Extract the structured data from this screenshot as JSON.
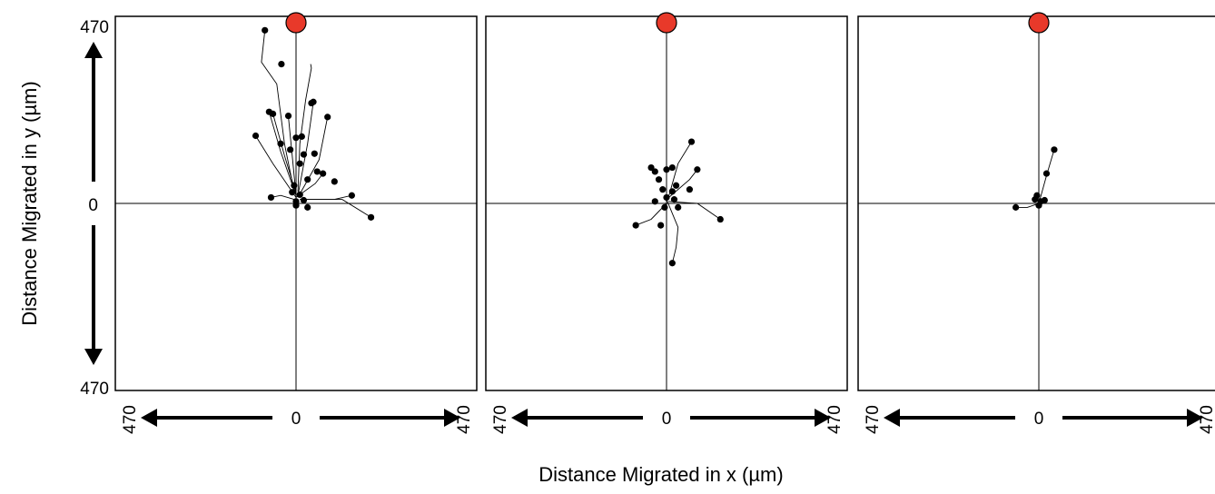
{
  "colors": {
    "frame": "#000000",
    "track": "#000000",
    "endpoint": "#000000",
    "source_fill": "#e8392a",
    "source_stroke": "#000000",
    "background": "#ffffff"
  },
  "chart_data": {
    "type": "scatter",
    "title": "",
    "xlabel": "Distance Migrated in x (µm)",
    "ylabel": "Distance Migrated in y (µm)",
    "xlim": [
      -470,
      470
    ],
    "ylim": [
      -470,
      470
    ],
    "y_tick_labels": {
      "top": "470",
      "middle": "0",
      "bottom": "470"
    },
    "x_tick_labels": {
      "left": "470",
      "middle": "0",
      "right": "470"
    },
    "grid": false,
    "legend": "none",
    "source": {
      "x": 0,
      "y": 470,
      "label": ""
    },
    "panels": [
      {
        "name": "",
        "endpoints": [
          [
            -81,
            435
          ],
          [
            -38,
            350
          ],
          [
            -60,
            225
          ],
          [
            -70,
            230
          ],
          [
            -20,
            220
          ],
          [
            45,
            255
          ],
          [
            40,
            252
          ],
          [
            82,
            217
          ],
          [
            -105,
            170
          ],
          [
            0,
            165
          ],
          [
            15,
            168
          ],
          [
            -15,
            135
          ],
          [
            48,
            125
          ],
          [
            20,
            123
          ],
          [
            70,
            75
          ],
          [
            55,
            80
          ],
          [
            100,
            55
          ],
          [
            -65,
            15
          ],
          [
            -10,
            28
          ],
          [
            10,
            22
          ],
          [
            0,
            5
          ],
          [
            0,
            -5
          ],
          [
            20,
            8
          ],
          [
            -5,
            45
          ],
          [
            30,
            60
          ],
          [
            195,
            -35
          ],
          [
            145,
            20
          ],
          [
            30,
            -10
          ],
          [
            10,
            100
          ],
          [
            -40,
            150
          ]
        ],
        "tracks": [
          [
            [
              -5,
              30
            ],
            [
              -30,
              150
            ],
            [
              -50,
              300
            ],
            [
              -90,
              355
            ],
            [
              -81,
              435
            ]
          ],
          [
            [
              5,
              30
            ],
            [
              10,
              150
            ],
            [
              25,
              260
            ],
            [
              40,
              340
            ],
            [
              38,
              350
            ]
          ],
          [
            [
              0,
              25
            ],
            [
              -30,
              120
            ],
            [
              -60,
              225
            ]
          ],
          [
            [
              0,
              20
            ],
            [
              -40,
              130
            ],
            [
              -70,
              230
            ]
          ],
          [
            [
              0,
              20
            ],
            [
              -10,
              120
            ],
            [
              -20,
              220
            ]
          ],
          [
            [
              5,
              20
            ],
            [
              30,
              150
            ],
            [
              45,
              255
            ]
          ],
          [
            [
              5,
              15
            ],
            [
              60,
              110
            ],
            [
              82,
              217
            ]
          ],
          [
            [
              0,
              15
            ],
            [
              -60,
              100
            ],
            [
              -105,
              170
            ]
          ],
          [
            [
              10,
              10
            ],
            [
              120,
              10
            ],
            [
              195,
              -35
            ]
          ],
          [
            [
              10,
              10
            ],
            [
              100,
              10
            ],
            [
              145,
              20
            ]
          ],
          [
            [
              0,
              15
            ],
            [
              50,
              50
            ],
            [
              70,
              75
            ]
          ],
          [
            [
              -5,
              10
            ],
            [
              -40,
              20
            ],
            [
              -65,
              15
            ]
          ]
        ]
      },
      {
        "name": "",
        "endpoints": [
          [
            65,
            155
          ],
          [
            -40,
            90
          ],
          [
            -30,
            80
          ],
          [
            0,
            85
          ],
          [
            15,
            90
          ],
          [
            80,
            85
          ],
          [
            -20,
            60
          ],
          [
            25,
            45
          ],
          [
            -10,
            35
          ],
          [
            15,
            30
          ],
          [
            -30,
            5
          ],
          [
            0,
            15
          ],
          [
            20,
            10
          ],
          [
            -5,
            -10
          ],
          [
            30,
            -10
          ],
          [
            -80,
            -55
          ],
          [
            -15,
            -55
          ],
          [
            140,
            -40
          ],
          [
            15,
            -150
          ],
          [
            60,
            35
          ]
        ],
        "tracks": [
          [
            [
              5,
              15
            ],
            [
              30,
              100
            ],
            [
              65,
              155
            ]
          ],
          [
            [
              0,
              10
            ],
            [
              30,
              -60
            ],
            [
              25,
              -110
            ],
            [
              15,
              -150
            ]
          ],
          [
            [
              5,
              5
            ],
            [
              80,
              0
            ],
            [
              140,
              -40
            ]
          ],
          [
            [
              0,
              0
            ],
            [
              -40,
              -40
            ],
            [
              -80,
              -55
            ]
          ],
          [
            [
              0,
              10
            ],
            [
              60,
              60
            ],
            [
              80,
              85
            ]
          ]
        ]
      },
      {
        "name": "",
        "endpoints": [
          [
            40,
            135
          ],
          [
            20,
            75
          ],
          [
            -5,
            20
          ],
          [
            -10,
            10
          ],
          [
            5,
            5
          ],
          [
            15,
            8
          ],
          [
            0,
            -5
          ],
          [
            -60,
            -10
          ]
        ],
        "tracks": [
          [
            [
              0,
              0
            ],
            [
              20,
              70
            ],
            [
              40,
              135
            ]
          ],
          [
            [
              0,
              0
            ],
            [
              -30,
              -10
            ],
            [
              -60,
              -10
            ]
          ]
        ]
      }
    ]
  }
}
